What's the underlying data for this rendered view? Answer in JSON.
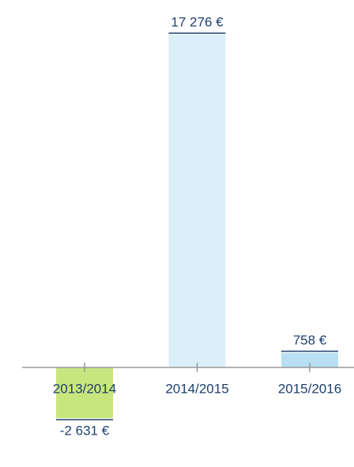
{
  "chart_data": {
    "type": "bar",
    "categories": [
      "2013/2014",
      "2014/2015",
      "2015/2016"
    ],
    "values": [
      -2631,
      17276,
      758
    ],
    "value_labels": [
      "-2 631 €",
      "17 276 €",
      "758 €"
    ],
    "colors": [
      "#c8e67e",
      "#dbeff8",
      "#b8e0f2"
    ]
  }
}
